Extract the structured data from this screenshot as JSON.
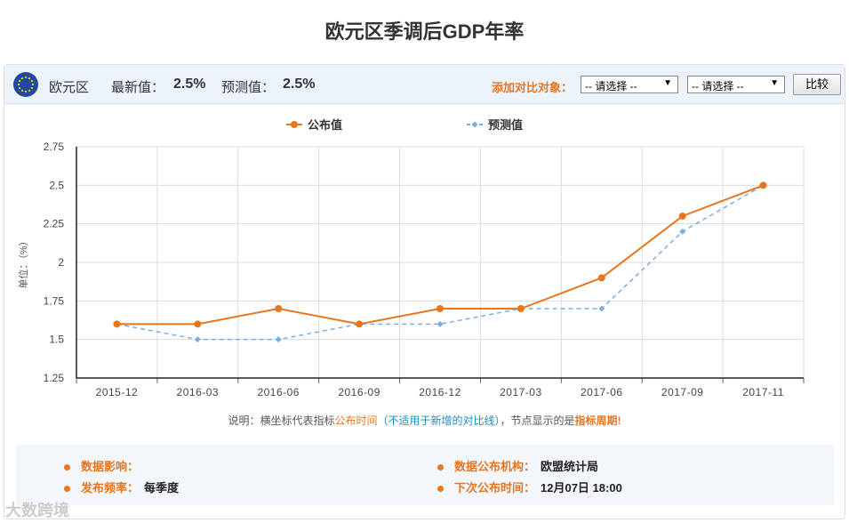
{
  "title": "欧元区季调后GDP年率",
  "header": {
    "region": "欧元区",
    "latest_label": "最新值：",
    "latest_value": "2.5%",
    "forecast_label": "预测值：",
    "forecast_value": "2.5%",
    "compare_label": "添加对比对象：",
    "select1": "-- 请选择 --",
    "select2": "-- 请选择 --",
    "compare_button": "比较"
  },
  "chart_data": {
    "type": "line",
    "categories": [
      "2015-12",
      "2016-03",
      "2016-06",
      "2016-09",
      "2016-12",
      "2017-03",
      "2017-06",
      "2017-09",
      "2017-11"
    ],
    "series": [
      {
        "name": "公布值",
        "color": "#e8761f",
        "style": "solid",
        "values": [
          1.6,
          1.6,
          1.7,
          1.6,
          1.7,
          1.7,
          1.9,
          2.3,
          2.5
        ]
      },
      {
        "name": "预测值",
        "color": "#7aaee0",
        "style": "dashed",
        "values": [
          1.6,
          1.5,
          1.5,
          1.6,
          1.6,
          1.7,
          1.7,
          2.2,
          2.5
        ]
      }
    ],
    "yticks": [
      "1.25",
      "1.5",
      "1.75",
      "2",
      "2.25",
      "2.5",
      "2.75"
    ],
    "ylim": [
      1.25,
      2.75
    ],
    "ylabel": "单位：（%）",
    "grid": true,
    "legend_position": "top-center"
  },
  "note": {
    "p1": "说明：横坐标代表指标",
    "p2": "公布时间",
    "p3": "（不适用于新增的对比线）",
    "p4": "，节点显示的是",
    "p5": "指标周期",
    "p6": "!"
  },
  "info": {
    "impact_label": "数据影响：",
    "impact_value": "",
    "agency_label": "数据公布机构：",
    "agency_value": "欧盟统计局",
    "freq_label": "发布频率：",
    "freq_value": "每季度",
    "next_label": "下次公布时间：",
    "next_value": "12月07日 18:00"
  },
  "watermark": "大数跨境"
}
